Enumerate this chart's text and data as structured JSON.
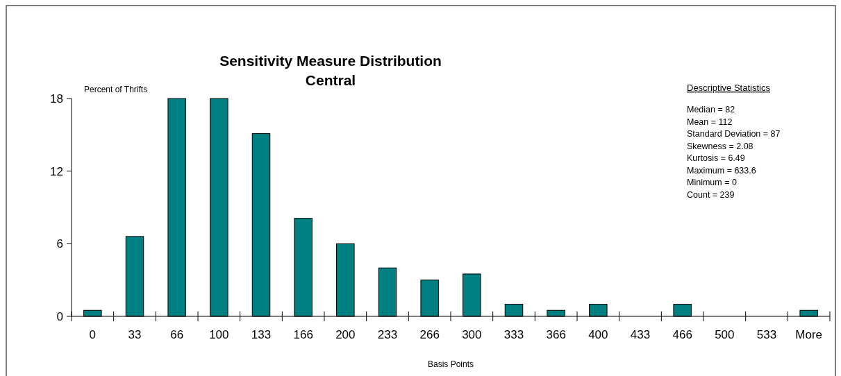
{
  "chart_data": {
    "type": "bar",
    "title": "Sensitivity Measure Distribution",
    "subtitle": "Central",
    "ylabel": "Percent of Thrifts",
    "xlabel": "Basis Points",
    "categories": [
      "0",
      "33",
      "66",
      "100",
      "133",
      "166",
      "200",
      "233",
      "266",
      "300",
      "333",
      "366",
      "400",
      "433",
      "466",
      "500",
      "533",
      "More"
    ],
    "values": [
      0.5,
      6.6,
      18,
      18,
      15.1,
      8.1,
      6.0,
      4.0,
      3.0,
      3.5,
      1.0,
      0.5,
      1.0,
      0,
      1.0,
      0,
      0,
      0.5
    ],
    "color": "#008080",
    "ylim": [
      0,
      18
    ],
    "yticks": [
      0,
      6,
      12,
      18
    ],
    "grid": false,
    "annotations": [
      "Descriptive Statistics",
      "Median = 82",
      "Mean = 112",
      "Standard Deviation = 87",
      "Skewness = 2.08",
      "Kurtosis = 6.49",
      "Maximum = 633.6",
      "Minimum = 0",
      "Count = 239"
    ]
  }
}
